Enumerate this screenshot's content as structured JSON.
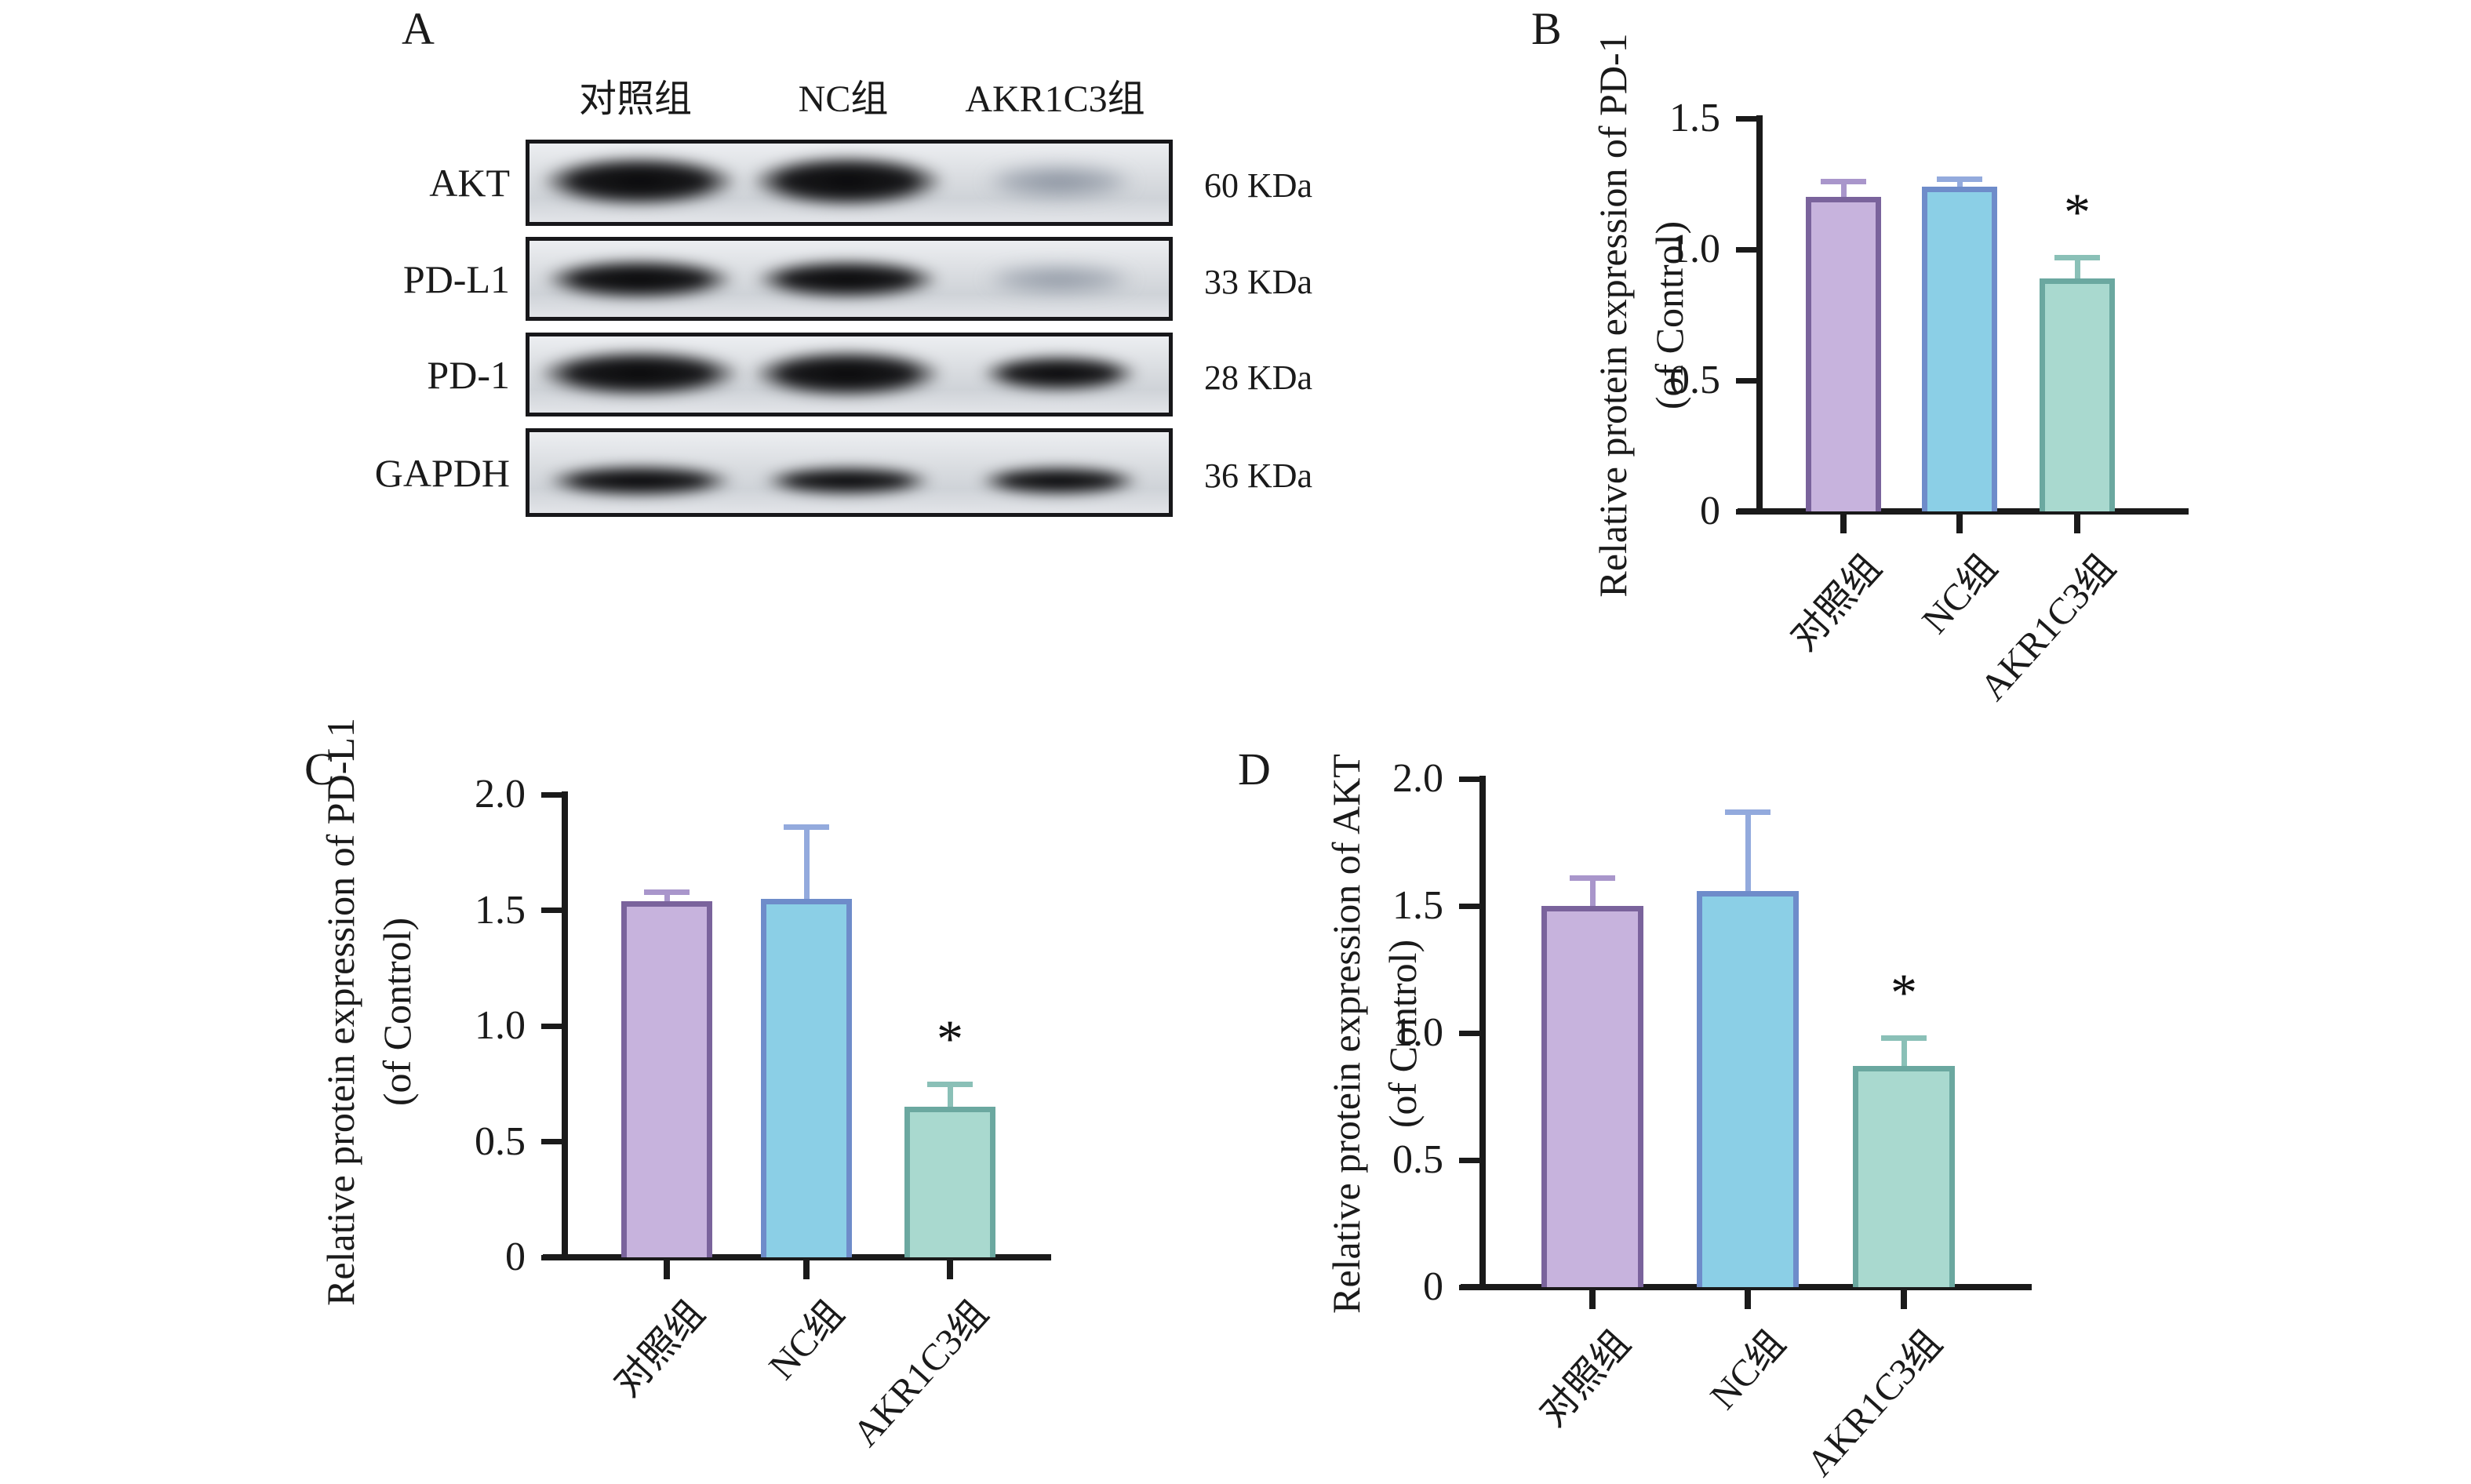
{
  "panel_labels": {
    "a": "A",
    "b": "B",
    "c": "C",
    "d": "D"
  },
  "western_blot": {
    "column_headers": [
      "对照组",
      "NC组",
      "AKR1C3组"
    ],
    "rows": [
      {
        "label": "AKT",
        "kda": "60 KDa",
        "band_intensities": [
          1.0,
          1.0,
          0.35
        ]
      },
      {
        "label": "PD-L1",
        "kda": "33 KDa",
        "band_intensities": [
          1.0,
          1.0,
          0.3
        ]
      },
      {
        "label": "PD-1",
        "kda": "28 KDa",
        "band_intensities": [
          1.0,
          1.0,
          0.92
        ]
      },
      {
        "label": "GAPDH",
        "kda": "36 KDa",
        "band_intensities": [
          1.0,
          1.0,
          1.0
        ]
      }
    ]
  },
  "group_styles": [
    {
      "name": "control-group",
      "fill": "#c7b3dd",
      "border": "#7a639c",
      "error": "#a996cb"
    },
    {
      "name": "nc-group",
      "fill": "#8bcfe6",
      "border": "#6e8cca",
      "error": "#93aadd"
    },
    {
      "name": "akr1c3-group",
      "fill": "#a9d9cf",
      "border": "#6ba8a0",
      "error": "#8ac0b7"
    }
  ],
  "chart_data": [
    {
      "id": "chart-b",
      "panel": "B",
      "type": "bar",
      "categories": [
        "对照组",
        "NC组",
        "AKR1C3组"
      ],
      "values": [
        1.2,
        1.24,
        0.89
      ],
      "errors": [
        0.06,
        0.03,
        0.08
      ],
      "significance": [
        "",
        "",
        "*"
      ],
      "ylabel_line1": "Relative protein expression of  PD-1",
      "ylabel_line2": "(of Control)",
      "xlabel": "",
      "ylim": [
        0,
        1.5
      ],
      "yticks": [
        "0",
        "0.5",
        "1.0",
        "1.5"
      ],
      "grid": "off",
      "legend": "none"
    },
    {
      "id": "chart-c",
      "panel": "C",
      "type": "bar",
      "categories": [
        "对照组",
        "NC组",
        "AKR1C3组"
      ],
      "values": [
        1.54,
        1.55,
        0.65
      ],
      "errors": [
        0.04,
        0.31,
        0.1
      ],
      "significance": [
        "",
        "",
        "*"
      ],
      "ylabel_line1": "Relative protein expression of  PD-L1",
      "ylabel_line2": "(of Control)",
      "xlabel": "",
      "ylim": [
        0,
        2.0
      ],
      "yticks": [
        "0",
        "0.5",
        "1.0",
        "1.5",
        "2.0"
      ],
      "grid": "off",
      "legend": "none"
    },
    {
      "id": "chart-d",
      "panel": "D",
      "type": "bar",
      "categories": [
        "对照组",
        "NC组",
        "AKR1C3组"
      ],
      "values": [
        1.5,
        1.56,
        0.87
      ],
      "errors": [
        0.11,
        0.31,
        0.11
      ],
      "significance": [
        "",
        "",
        "*"
      ],
      "ylabel_line1": "Relative protein expression of AKT",
      "ylabel_line2": "(of Control)",
      "xlabel": "",
      "ylim": [
        0,
        2.0
      ],
      "yticks": [
        "0",
        "0.5",
        "1.0",
        "1.5",
        "2.0"
      ],
      "grid": "off",
      "legend": "none"
    }
  ]
}
